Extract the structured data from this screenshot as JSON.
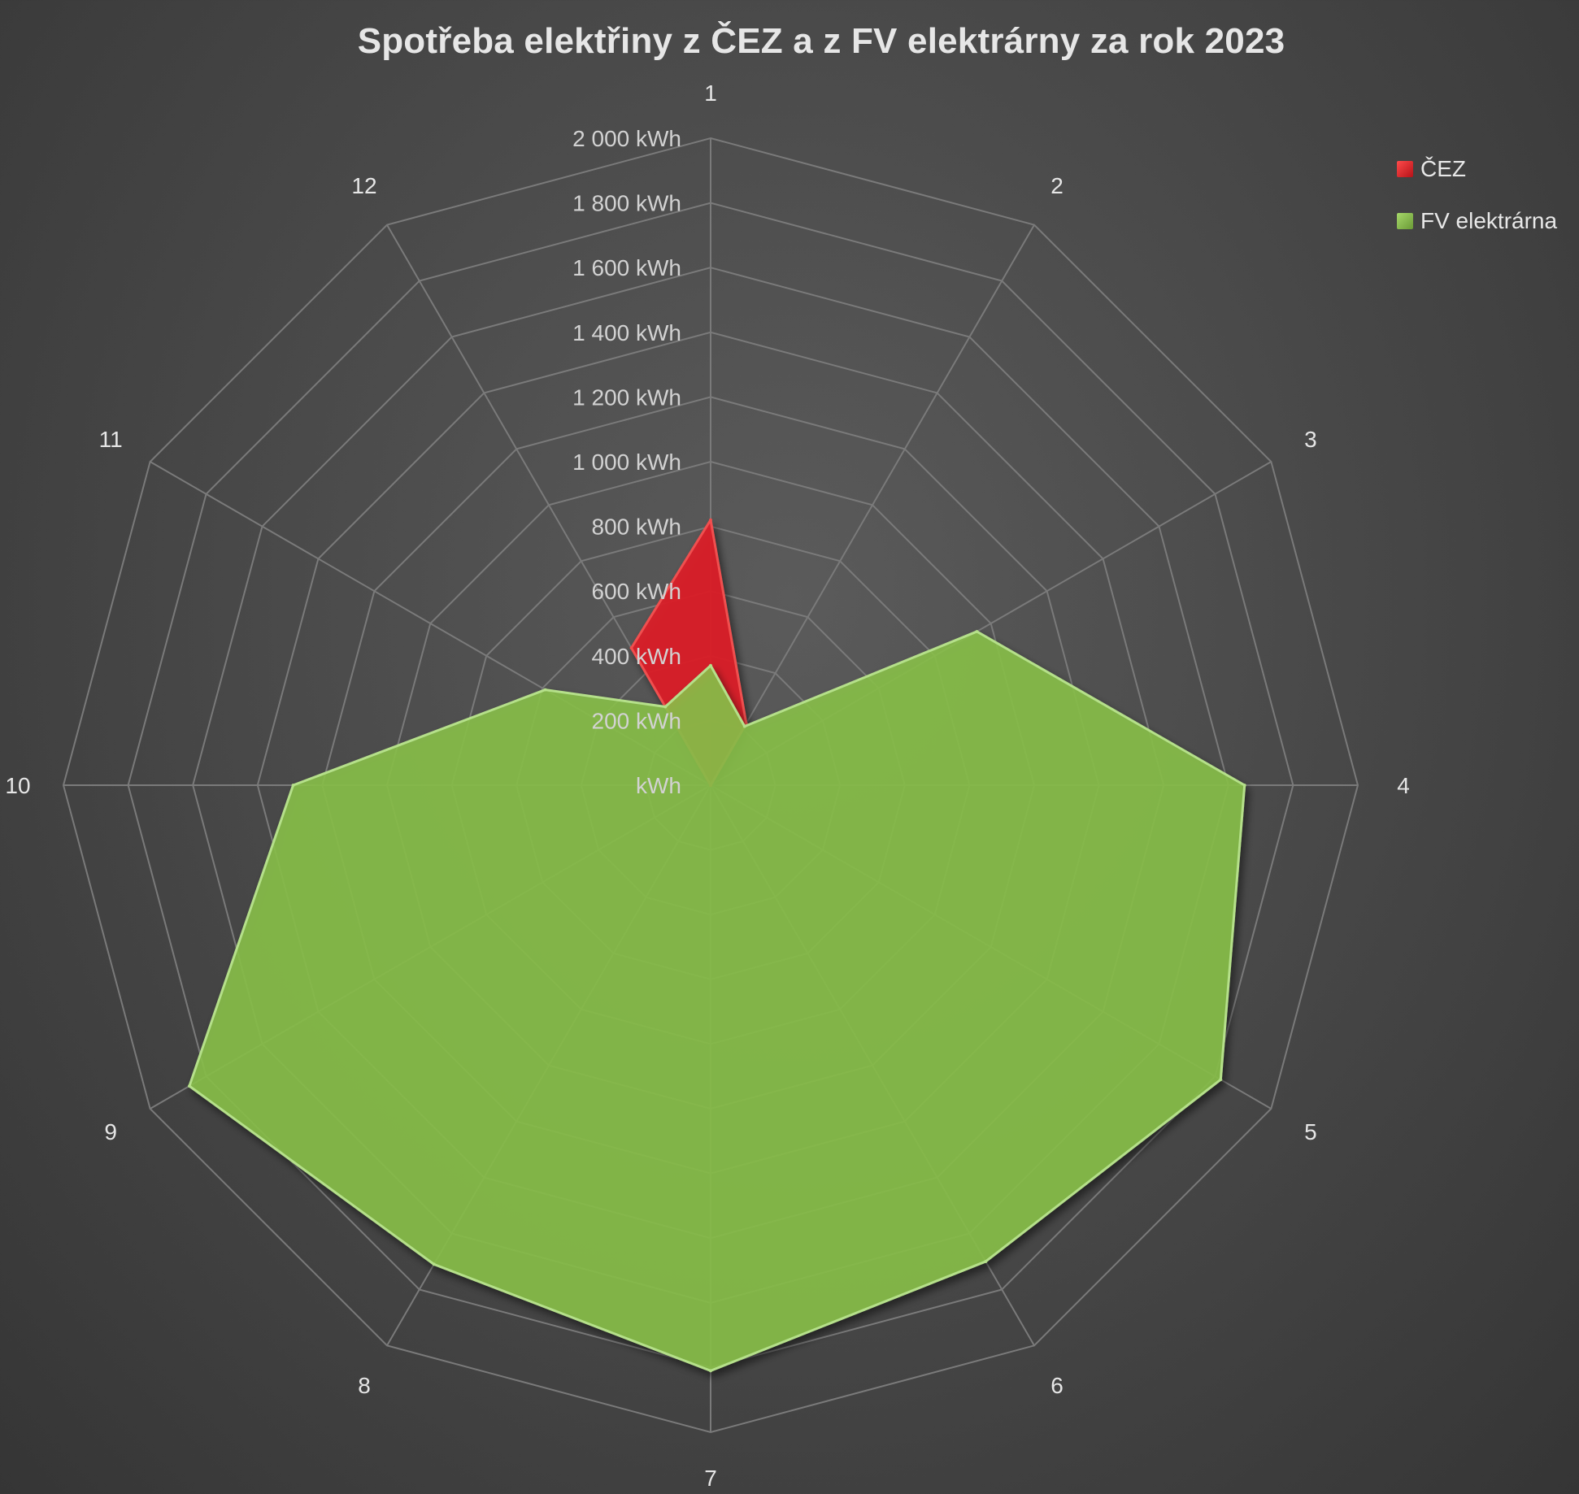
{
  "chart_data": {
    "type": "radar",
    "title": "Spotřeba elektřiny z ČEZ a z FV elektrárny za rok 2023",
    "categories": [
      "1",
      "2",
      "3",
      "4",
      "5",
      "6",
      "7",
      "8",
      "9",
      "10",
      "11",
      "12"
    ],
    "radial_ticks": [
      "kWh",
      "200 kWh",
      "400 kWh",
      "600 kWh",
      "800 kWh",
      "1 000 kWh",
      "1 200 kWh",
      "1 400 kWh",
      "1 600 kWh",
      "1 800 kWh",
      "2 000 kWh"
    ],
    "rlim": [
      0,
      2000
    ],
    "grid": true,
    "legend_position": "top-right",
    "series": [
      {
        "name": "ČEZ",
        "color": "#d81e24",
        "values": [
          820,
          220,
          0,
          0,
          0,
          0,
          0,
          0,
          0,
          0,
          0,
          490
        ]
      },
      {
        "name": "FV elektrárna",
        "color": "#8bc34a",
        "values": [
          370,
          210,
          950,
          1650,
          1820,
          1700,
          1810,
          1710,
          1860,
          1290,
          590,
          280
        ]
      }
    ]
  }
}
